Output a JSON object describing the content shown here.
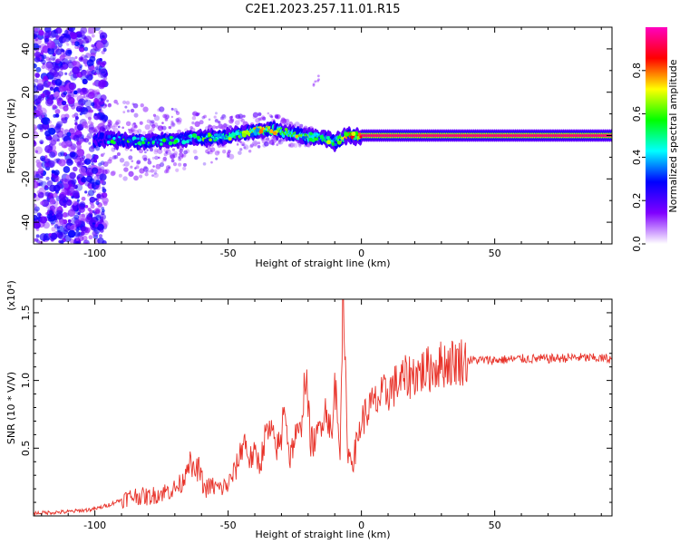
{
  "figure": {
    "title": "C2E1.2023.257.11.01.R15"
  },
  "chart_data": [
    {
      "type": "heatmap",
      "title": "C2E1.2023.257.11.01.R15",
      "xlabel": "Height of straight line (km)",
      "ylabel": "Frequency (Hz)",
      "xlim": [
        -123,
        94
      ],
      "ylim": [
        -50,
        50
      ],
      "x_ticks": [
        -100,
        -50,
        0,
        50
      ],
      "x_tick_labels": [
        "-100",
        "-50",
        "0",
        "50"
      ],
      "y_ticks": [
        -40,
        -20,
        0,
        20,
        40
      ],
      "y_tick_labels": [
        "-40",
        "-20",
        "0",
        "20",
        "40"
      ],
      "grid": false,
      "colorbar": {
        "label": "Normalized spectral amplitude",
        "range": [
          0,
          1
        ],
        "ticks": [
          0.0,
          0.2,
          0.4,
          0.6,
          0.8
        ],
        "tick_labels": [
          "0.0",
          "0.2",
          "0.4",
          "0.6",
          "0.8"
        ],
        "colors": [
          "#ffffff",
          "#8000ff",
          "#0000ff",
          "#00ffff",
          "#00ff00",
          "#ffff00",
          "#ff0000",
          "#ff00c0"
        ]
      },
      "ridge": {
        "x": [
          -100,
          -90,
          -80,
          -70,
          -60,
          -55,
          -50,
          -45,
          -40,
          -35,
          -30,
          -25,
          -20,
          -15,
          -10,
          -5,
          0,
          50,
          94
        ],
        "freq": [
          -2,
          -2,
          -3,
          -2,
          -1,
          -1,
          -0.5,
          0.5,
          2,
          3,
          2,
          0.5,
          -0.5,
          -1,
          -3,
          0,
          0,
          0,
          0
        ],
        "amplitude": [
          0.25,
          0.3,
          0.35,
          0.35,
          0.4,
          0.45,
          0.5,
          0.55,
          0.65,
          0.75,
          0.6,
          0.6,
          0.65,
          0.55,
          0.5,
          0.8,
          0.95,
          0.95,
          0.95
        ]
      }
    },
    {
      "type": "line",
      "xlabel": "Height of straight line (km)",
      "ylabel": "SNR (10 * V/V)",
      "y_scale_label": "(x10⁴)",
      "xlim": [
        -123,
        94
      ],
      "ylim": [
        0,
        1.6
      ],
      "x_ticks": [
        -100,
        -50,
        0,
        50
      ],
      "x_tick_labels": [
        "-100",
        "-50",
        "0",
        "50"
      ],
      "y_ticks": [
        0.5,
        1.0,
        1.5
      ],
      "y_tick_labels": [
        "0.5",
        "1.0",
        "1.5"
      ],
      "grid": false,
      "series": [
        {
          "color": "#e8332a",
          "x": [
            -123,
            -110,
            -100,
            -95,
            -90,
            -85,
            -80,
            -75,
            -70,
            -67,
            -65,
            -63,
            -61,
            -59,
            -56,
            -53,
            -50,
            -47,
            -44,
            -42,
            -40,
            -38,
            -36,
            -34,
            -32,
            -30,
            -29,
            -27,
            -25,
            -23,
            -21,
            -19,
            -17,
            -15,
            -13,
            -11,
            -10,
            -8,
            -7,
            -5,
            -3,
            0,
            3,
            6,
            10,
            15,
            20,
            25,
            30,
            35,
            40,
            50,
            60,
            70,
            80,
            94
          ],
          "y": [
            0.02,
            0.03,
            0.05,
            0.08,
            0.12,
            0.15,
            0.14,
            0.17,
            0.2,
            0.25,
            0.42,
            0.32,
            0.35,
            0.2,
            0.22,
            0.2,
            0.23,
            0.35,
            0.57,
            0.42,
            0.45,
            0.38,
            0.6,
            0.62,
            0.5,
            0.55,
            0.9,
            0.42,
            0.58,
            0.6,
            1.05,
            0.55,
            0.55,
            0.72,
            0.8,
            0.55,
            1.0,
            0.52,
            1.58,
            0.45,
            0.42,
            0.7,
            0.8,
            0.85,
            0.92,
            1.0,
            1.05,
            1.08,
            1.12,
            1.14,
            1.15,
            1.15,
            1.16,
            1.16,
            1.17,
            1.16
          ]
        }
      ]
    }
  ]
}
